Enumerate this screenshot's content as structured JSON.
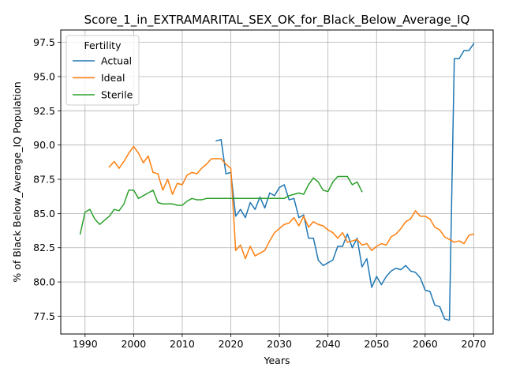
{
  "chart_data": {
    "type": "line",
    "title": "Score_1_in_EXTRAMARITAL_SEX_OK_for_Black_Below_Average_IQ",
    "xlabel": "Years",
    "ylabel": "% of Black Below_Average_IQ Population",
    "xlim": [
      1985,
      2074
    ],
    "ylim": [
      76.2,
      98.4
    ],
    "xticks": [
      1990,
      2000,
      2010,
      2020,
      2030,
      2040,
      2050,
      2060,
      2070
    ],
    "yticks": [
      77.5,
      80.0,
      82.5,
      85.0,
      87.5,
      90.0,
      92.5,
      95.0,
      97.5
    ],
    "ytick_labels": [
      "77.5",
      "80.0",
      "82.5",
      "85.0",
      "87.5",
      "90.0",
      "92.5",
      "95.0",
      "97.5"
    ],
    "grid": true,
    "legend": {
      "title": "Fertility",
      "position": "top-left"
    },
    "series": [
      {
        "name": "Actual",
        "color": "#1f77b4",
        "x": [
          2017,
          2018,
          2019,
          2020,
          2021,
          2022,
          2023,
          2024,
          2025,
          2026,
          2027,
          2028,
          2029,
          2030,
          2031,
          2032,
          2033,
          2034,
          2035,
          2036,
          2037,
          2038,
          2039,
          2040,
          2041,
          2042,
          2043,
          2044,
          2045,
          2046,
          2047,
          2048,
          2049,
          2050,
          2051,
          2052,
          2053,
          2054,
          2055,
          2056,
          2057,
          2058,
          2059,
          2060,
          2061,
          2062,
          2063,
          2064,
          2065,
          2066,
          2067,
          2068,
          2069,
          2070
        ],
        "y": [
          90.3,
          90.4,
          87.9,
          88.0,
          84.8,
          85.3,
          84.7,
          85.8,
          85.3,
          86.2,
          85.4,
          86.5,
          86.3,
          86.9,
          87.1,
          86.0,
          86.1,
          84.7,
          84.9,
          83.2,
          83.2,
          81.6,
          81.2,
          81.4,
          81.6,
          82.6,
          82.6,
          83.5,
          82.5,
          83.2,
          81.1,
          81.7,
          79.6,
          80.4,
          79.8,
          80.4,
          80.8,
          81.0,
          80.9,
          81.2,
          80.8,
          80.7,
          80.3,
          79.4,
          79.3,
          78.3,
          78.2,
          77.3,
          77.2,
          96.3,
          96.3,
          96.9,
          96.9,
          97.4
        ]
      },
      {
        "name": "Ideal",
        "color": "#ff7f0e",
        "x": [
          1995,
          1996,
          1997,
          1998,
          1999,
          2000,
          2001,
          2002,
          2003,
          2004,
          2005,
          2006,
          2007,
          2008,
          2009,
          2010,
          2011,
          2012,
          2013,
          2014,
          2015,
          2016,
          2017,
          2018,
          2019,
          2020,
          2021,
          2022,
          2023,
          2024,
          2025,
          2026,
          2027,
          2028,
          2029,
          2030,
          2031,
          2032,
          2033,
          2034,
          2035,
          2036,
          2037,
          2038,
          2039,
          2040,
          2041,
          2042,
          2043,
          2044,
          2045,
          2046,
          2047,
          2048,
          2049,
          2050,
          2051,
          2052,
          2053,
          2054,
          2055,
          2056,
          2057,
          2058,
          2059,
          2060,
          2061,
          2062,
          2063,
          2064,
          2065,
          2066,
          2067,
          2068,
          2069,
          2070
        ],
        "y": [
          88.4,
          88.8,
          88.3,
          88.8,
          89.4,
          89.9,
          89.4,
          88.7,
          89.2,
          88.0,
          87.9,
          86.7,
          87.5,
          86.4,
          87.2,
          87.1,
          87.8,
          88.0,
          87.9,
          88.3,
          88.6,
          89.0,
          89.0,
          89.0,
          88.6,
          88.3,
          82.3,
          82.7,
          81.7,
          82.6,
          81.9,
          82.1,
          82.3,
          83.0,
          83.6,
          83.9,
          84.2,
          84.3,
          84.7,
          84.1,
          84.8,
          84.0,
          84.4,
          84.2,
          84.1,
          83.8,
          83.6,
          83.2,
          83.6,
          82.9,
          83.0,
          83.1,
          82.7,
          82.8,
          82.3,
          82.6,
          82.8,
          82.7,
          83.3,
          83.5,
          83.9,
          84.4,
          84.6,
          85.2,
          84.8,
          84.8,
          84.6,
          84.0,
          83.8,
          83.3,
          83.1,
          82.9,
          83.0,
          82.8,
          83.4,
          83.5
        ]
      },
      {
        "name": "Sterile",
        "color": "#2ca02c",
        "x": [
          1989,
          1990,
          1991,
          1992,
          1993,
          1994,
          1995,
          1996,
          1997,
          1998,
          1999,
          2000,
          2001,
          2002,
          2003,
          2004,
          2005,
          2006,
          2007,
          2008,
          2009,
          2010,
          2011,
          2012,
          2013,
          2014,
          2015,
          2016,
          2017,
          2018,
          2019,
          2020,
          2021,
          2022,
          2023,
          2024,
          2025,
          2026,
          2027,
          2028,
          2029,
          2030,
          2031,
          2032,
          2033,
          2034,
          2035,
          2036,
          2037,
          2038,
          2039,
          2040,
          2041,
          2042,
          2043,
          2044,
          2045,
          2046,
          2047
        ],
        "y": [
          83.5,
          85.1,
          85.3,
          84.6,
          84.2,
          84.5,
          84.8,
          85.3,
          85.2,
          85.7,
          86.7,
          86.7,
          86.1,
          86.3,
          86.5,
          86.7,
          85.8,
          85.7,
          85.7,
          85.7,
          85.6,
          85.6,
          85.9,
          86.1,
          86.0,
          86.0,
          86.1,
          86.1,
          86.1,
          86.1,
          86.1,
          86.1,
          86.1,
          86.1,
          86.1,
          86.1,
          86.1,
          86.1,
          86.1,
          86.1,
          86.1,
          86.1,
          86.1,
          86.3,
          86.4,
          86.5,
          86.4,
          87.1,
          87.6,
          87.3,
          86.7,
          86.6,
          87.3,
          87.7,
          87.7,
          87.7,
          87.1,
          87.3,
          86.6
        ]
      }
    ]
  }
}
